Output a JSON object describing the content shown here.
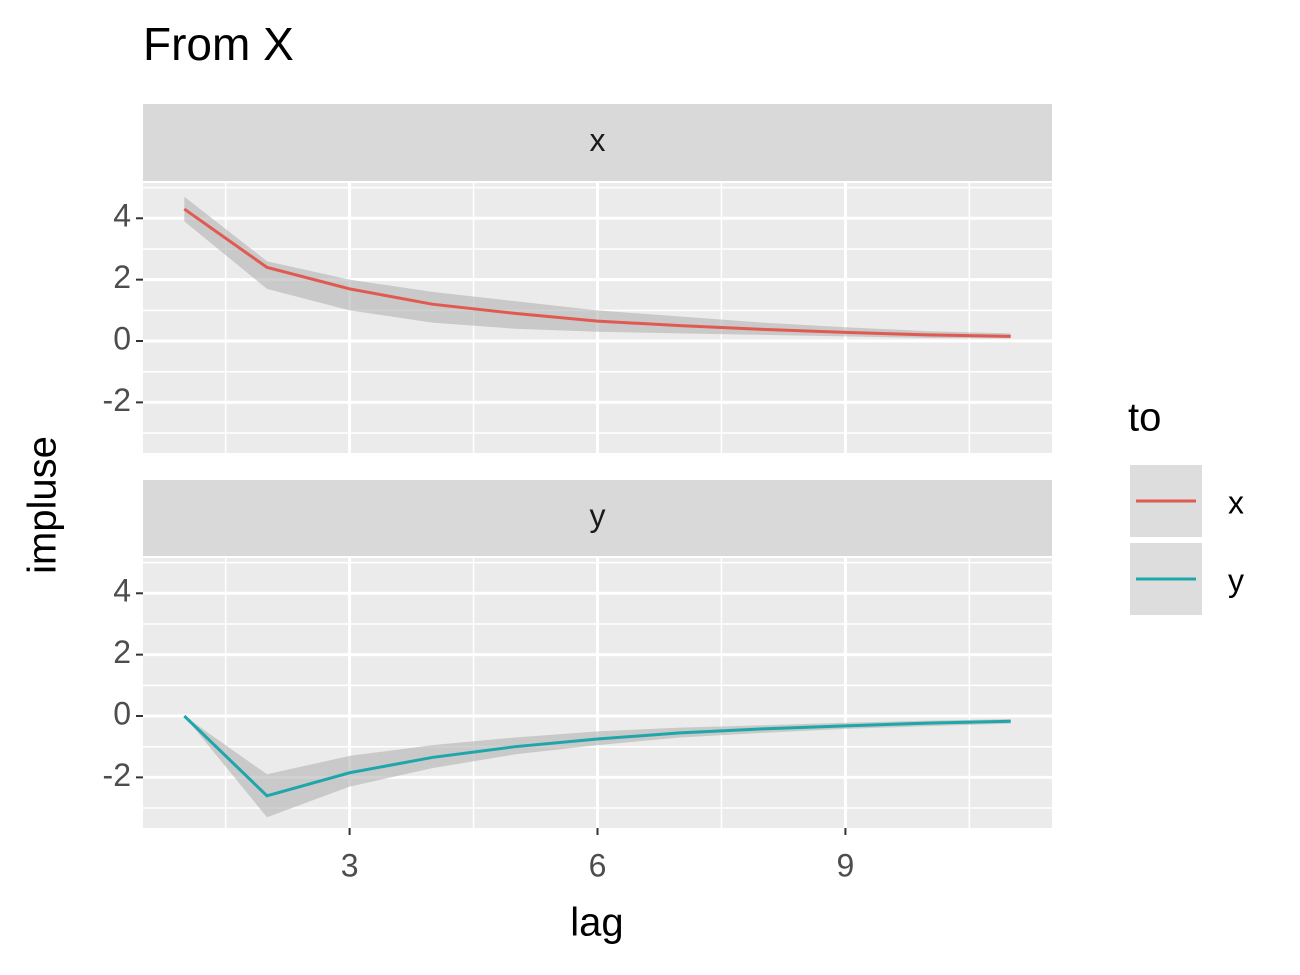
{
  "chart_data": {
    "type": "line",
    "title": "From X",
    "x_label": "lag",
    "y_label": "impluse",
    "legend_title": "to",
    "x": [
      1,
      2,
      3,
      4,
      5,
      6,
      7,
      8,
      9,
      10,
      11
    ],
    "xlim": [
      0.5,
      11.5
    ],
    "xticks": [
      3,
      6,
      9
    ],
    "ylim": [
      -3.65,
      5.15
    ],
    "yticks": [
      -2,
      0,
      2,
      4
    ],
    "grid": true,
    "ribbon_color": "#b3b3b3",
    "series": [
      {
        "name": "x",
        "color": "#e05a52",
        "values": [
          4.3,
          2.4,
          1.7,
          1.2,
          0.9,
          0.65,
          0.5,
          0.38,
          0.28,
          0.2,
          0.15
        ],
        "lower": [
          3.9,
          1.7,
          1.0,
          0.6,
          0.4,
          0.3,
          0.25,
          0.2,
          0.15,
          0.1,
          0.08
        ],
        "upper": [
          4.7,
          2.6,
          2.0,
          1.6,
          1.3,
          1.0,
          0.8,
          0.6,
          0.45,
          0.32,
          0.25
        ]
      },
      {
        "name": "y",
        "color": "#1fa6aa",
        "values": [
          0,
          -2.6,
          -1.85,
          -1.35,
          -1.0,
          -0.75,
          -0.55,
          -0.42,
          -0.32,
          -0.23,
          -0.17
        ],
        "lower": [
          0,
          -3.3,
          -2.3,
          -1.7,
          -1.25,
          -0.95,
          -0.7,
          -0.55,
          -0.42,
          -0.33,
          -0.25
        ],
        "upper": [
          0,
          -1.9,
          -1.3,
          -0.95,
          -0.7,
          -0.5,
          -0.38,
          -0.3,
          -0.22,
          -0.15,
          -0.1
        ]
      }
    ]
  }
}
